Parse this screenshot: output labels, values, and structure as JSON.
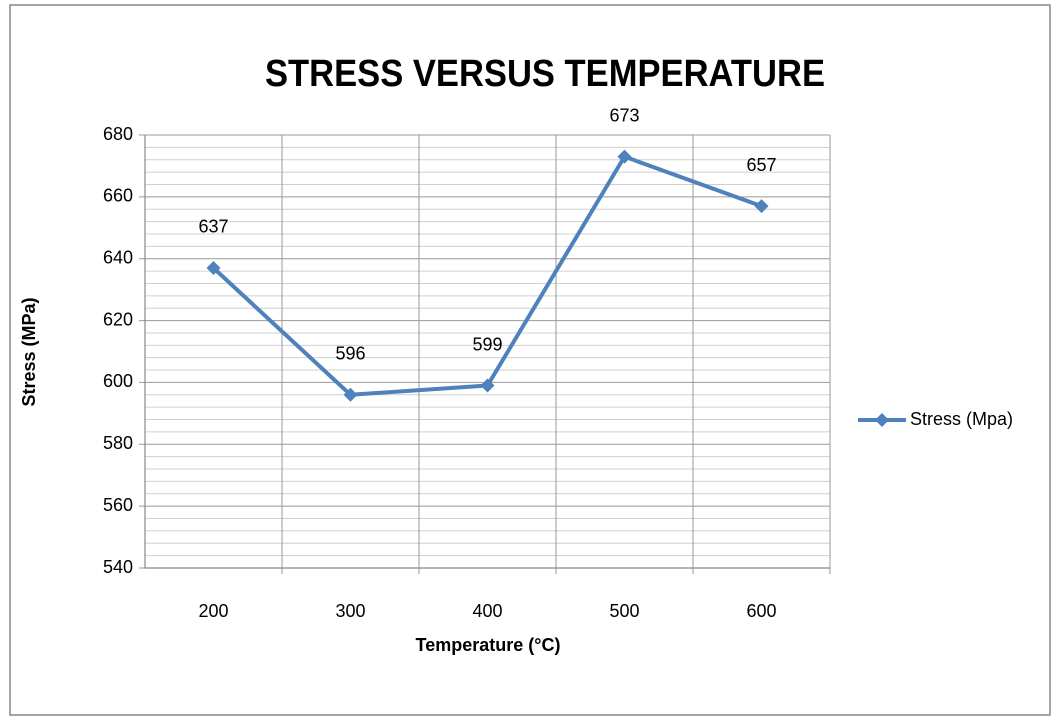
{
  "chart_data": {
    "type": "line",
    "title": "STRESS VERSUS TEMPERATURE",
    "x_label": "Temperature (°C)",
    "y_label": "Stress (MPa)",
    "categories": [
      "200",
      "300",
      "400",
      "500",
      "600"
    ],
    "series": [
      {
        "name": "Stress (Mpa)",
        "color": "#4f81bd",
        "values": [
          637,
          596,
          599,
          673,
          657
        ]
      }
    ],
    "ylim": [
      540,
      680
    ],
    "yticks": [
      540,
      560,
      580,
      600,
      620,
      640,
      660,
      680
    ],
    "grid": true,
    "minor_grid_divisions": 5,
    "legend": "right",
    "data_labels": true
  }
}
